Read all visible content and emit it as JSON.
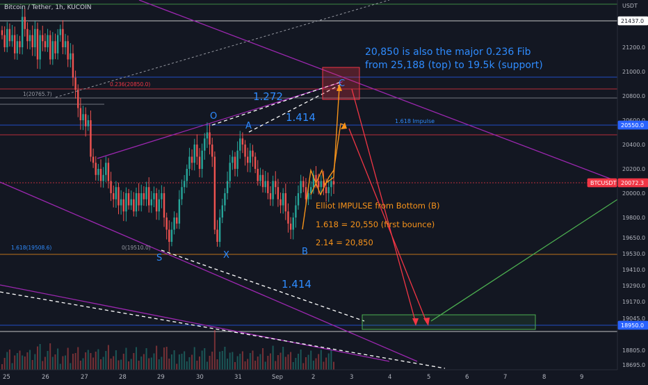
{
  "symbol_header": "Bitcoin / Tether, 1h, KUCOIN",
  "chart_data": {
    "type": "candlestick",
    "price_axis": {
      "currency": "USDT",
      "ticks": [
        21200,
        21000,
        20800,
        20600,
        20400,
        20200,
        20000,
        19800,
        19650,
        19530,
        19410,
        19290,
        19170,
        19045,
        18805,
        18695
      ],
      "tick_labels": [
        "21200.0",
        "21000.0",
        "20800.0",
        "20600.0",
        "20400.0",
        "20200.0",
        "20000.0",
        "19800.0",
        "19650.0",
        "19530.0",
        "19410.0",
        "19290.0",
        "19170.0",
        "19045.0",
        "18805.0",
        "18695.0"
      ],
      "badges": [
        {
          "label": "21437.0",
          "value": 21437,
          "style": "dark"
        },
        {
          "label": "20550.0",
          "value": 20550,
          "style": "blue"
        },
        {
          "label": "BTCUSDT",
          "value": 20072.3,
          "style": "red"
        },
        {
          "label": "20072.3",
          "value": 20072.3,
          "style": "red"
        },
        {
          "label": "18950.0",
          "value": 18950,
          "style": "blue"
        }
      ]
    },
    "time_axis": {
      "labels": [
        "25",
        "26",
        "27",
        "28",
        "29",
        "30",
        "31",
        "Sep",
        "2",
        "3",
        "4",
        "5",
        "6",
        "7",
        "8",
        "9"
      ]
    },
    "closes": [
      21300,
      21200,
      21350,
      21250,
      21300,
      21150,
      21250,
      21200,
      21450,
      21350,
      21250,
      21300,
      21200,
      21350,
      21100,
      21300,
      21250,
      21200,
      21300,
      21100,
      21250,
      21150,
      21300,
      21350,
      21200,
      21250,
      21100,
      21150,
      20950,
      20850,
      20700,
      20600,
      20650,
      20550,
      20600,
      20300,
      20250,
      20150,
      20200,
      20100,
      20150,
      20250,
      20100,
      20000,
      19950,
      20050,
      19900,
      19950,
      19850,
      20000,
      19900,
      19950,
      19850,
      20000,
      19900,
      20000,
      19950,
      20050,
      19900,
      19950,
      20000,
      19850,
      19950,
      20000,
      19800,
      19700,
      19600,
      19700,
      19800,
      19750,
      19950,
      20050,
      20100,
      20200,
      20300,
      20250,
      20400,
      20300,
      20200,
      20350,
      20450,
      20500,
      20400,
      20300,
      19700,
      19600,
      19800,
      19900,
      20000,
      20100,
      20250,
      20300,
      20200,
      20350,
      20450,
      20400,
      20300,
      20250,
      20350,
      20300,
      20200,
      20100,
      20150,
      20050,
      20100,
      20000,
      19950,
      20100,
      20050,
      19950,
      19900,
      20000,
      19850,
      19750,
      19700,
      19800,
      19900,
      20000,
      20100,
      20050,
      19950,
      20000,
      20050,
      20150,
      20100,
      20050,
      20100,
      20050,
      20000,
      20050,
      20100,
      20072
    ]
  },
  "annotations": {
    "fib_note_line1": "20,850 is also the major 0.236 Fib",
    "fib_note_line2": "from 25,188 (top) to 19.5k (support)",
    "impulse_title": "Elliot IMPULSE from Bottom (B)",
    "impulse_1618": "1.618 = 20,550 (first bounce)",
    "impulse_214": "2.14 = 20,850",
    "ratio_1272": "1.272",
    "ratio_1414_top": "1.414",
    "ratio_1414_bottom": "1.414",
    "impulse_1618_label": "1.618 Impulse",
    "fib_0236_label": "0.236(20850.0)",
    "fib_1_label": "1(20765.7)",
    "fib_0_label": "0(19510.0)",
    "fib_1618_label": "1.618(19508.6)",
    "letter_o": "O",
    "letter_a": "A",
    "letter_c": "C",
    "letter_s": "S",
    "letter_x": "X",
    "letter_b": "B"
  }
}
